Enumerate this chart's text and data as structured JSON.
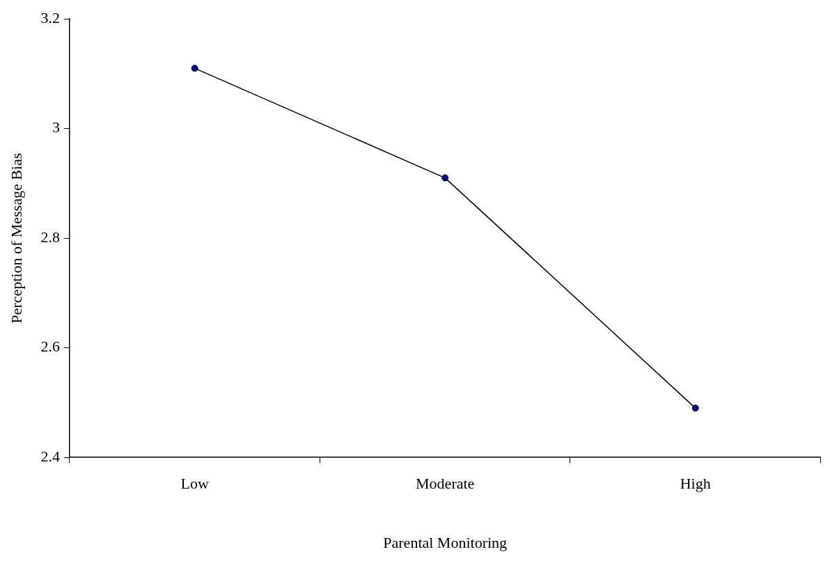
{
  "chart_data": {
    "type": "line",
    "xlabel": "Parental Monitoring",
    "ylabel": "Perception of Message Bias",
    "categories": [
      "Low",
      "Moderate",
      "High"
    ],
    "series": [
      {
        "color": "#000080",
        "values": [
          3.11,
          2.91,
          2.49
        ]
      }
    ],
    "ylim": [
      2.4,
      3.2
    ],
    "yticks": [
      2.4,
      2.6,
      2.8,
      3,
      3.2
    ],
    "grid": false,
    "legend": false,
    "marker": "circle",
    "line_style": "solid"
  }
}
